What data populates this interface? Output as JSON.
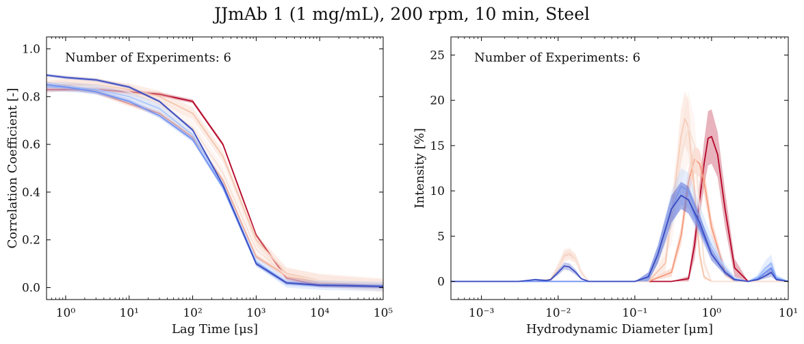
{
  "figure": {
    "suptitle": "JJmAb 1 (1 mg/mL), 200 rpm, 10 min, Steel"
  },
  "chart_data": [
    {
      "type": "line",
      "title": "",
      "xlabel": "Lag Time [μs]",
      "ylabel": "Correlation Coefficient [-]",
      "xscale": "log",
      "xlim": [
        0.5,
        100000
      ],
      "ylim": [
        -0.05,
        1.05
      ],
      "xticks": [
        1,
        10,
        100,
        1000,
        10000,
        100000
      ],
      "xtick_labels": [
        "10⁰",
        "10¹",
        "10²",
        "10³",
        "10⁴",
        "10⁵"
      ],
      "yticks": [
        0.0,
        0.2,
        0.4,
        0.6,
        0.8,
        1.0
      ],
      "ytick_labels": [
        "0.0",
        "0.2",
        "0.4",
        "0.6",
        "0.8",
        "1.0"
      ],
      "grid": false,
      "annotation": "Number of Experiments: 6",
      "series": [
        {
          "color": "#b40426",
          "x": [
            0.5,
            1,
            3,
            10,
            30,
            100,
            300,
            1000,
            3000,
            10000,
            30000,
            100000
          ],
          "y": [
            0.83,
            0.83,
            0.83,
            0.82,
            0.81,
            0.78,
            0.6,
            0.22,
            0.04,
            0.01,
            0.008,
            0.005
          ],
          "band": 0.008
        },
        {
          "color": "#f4987a",
          "x": [
            0.5,
            1,
            3,
            10,
            30,
            100,
            300,
            1000,
            3000,
            10000,
            30000,
            100000
          ],
          "y": [
            0.84,
            0.84,
            0.82,
            0.77,
            0.73,
            0.63,
            0.45,
            0.13,
            0.05,
            0.02,
            0.015,
            0.01
          ],
          "band": 0.01
        },
        {
          "color": "#f5c4ac",
          "x": [
            0.5,
            1,
            3,
            10,
            30,
            100,
            300,
            1000,
            3000,
            10000,
            30000,
            100000
          ],
          "y": [
            0.84,
            0.85,
            0.85,
            0.83,
            0.8,
            0.73,
            0.55,
            0.2,
            0.06,
            0.03,
            0.02,
            0.01
          ],
          "band": 0.025
        },
        {
          "color": "#f7e1d6",
          "x": [
            0.5,
            1,
            3,
            10,
            30,
            100,
            300,
            1000,
            3000,
            10000,
            30000,
            100000
          ],
          "y": [
            0.86,
            0.86,
            0.85,
            0.82,
            0.77,
            0.67,
            0.48,
            0.16,
            0.05,
            0.03,
            0.02,
            0.01
          ],
          "band": 0.03
        },
        {
          "color": "#aac7fd",
          "x": [
            0.5,
            1,
            3,
            10,
            30,
            100,
            300,
            1000,
            3000,
            10000,
            30000,
            100000
          ],
          "y": [
            0.84,
            0.84,
            0.83,
            0.8,
            0.75,
            0.64,
            0.43,
            0.11,
            0.02,
            0.01,
            0.008,
            0.005
          ],
          "band": 0.02
        },
        {
          "color": "#6f92f3",
          "x": [
            0.5,
            1,
            3,
            10,
            30,
            100,
            300,
            1000,
            3000,
            10000,
            30000,
            100000
          ],
          "y": [
            0.85,
            0.84,
            0.82,
            0.78,
            0.72,
            0.62,
            0.42,
            0.1,
            0.02,
            0.01,
            0.008,
            0.005
          ],
          "band": 0.01
        },
        {
          "color": "#3b4cc0",
          "x": [
            0.5,
            1,
            3,
            10,
            30,
            100,
            300,
            1000,
            3000,
            10000,
            30000,
            100000
          ],
          "y": [
            0.89,
            0.88,
            0.87,
            0.84,
            0.78,
            0.66,
            0.43,
            0.1,
            0.02,
            0.01,
            0.008,
            0.005
          ],
          "band": 0.006
        }
      ]
    },
    {
      "type": "line",
      "title": "",
      "xlabel": "Hydrodynamic Diameter [μm]",
      "ylabel": "Intensity [%]",
      "xscale": "log",
      "xlim": [
        0.0004,
        10
      ],
      "ylim": [
        -2,
        27
      ],
      "xticks": [
        0.001,
        0.01,
        0.1,
        1,
        10
      ],
      "xtick_labels": [
        "10⁻³",
        "10⁻²",
        "10⁻¹",
        "10⁰",
        "10¹"
      ],
      "yticks": [
        0,
        5,
        10,
        15,
        20,
        25
      ],
      "ytick_labels": [
        "0",
        "5",
        "10",
        "15",
        "20",
        "25"
      ],
      "grid": false,
      "annotation": "Number of Experiments: 6",
      "series": [
        {
          "color": "#b40426",
          "x": [
            0.0004,
            0.3,
            0.5,
            0.6,
            0.7,
            0.8,
            0.9,
            1.0,
            1.2,
            1.5,
            2.0,
            3.0,
            10
          ],
          "y": [
            0,
            0,
            0.3,
            4,
            9,
            13,
            15.8,
            16,
            14,
            8,
            1.5,
            0,
            0
          ],
          "band": [
            0,
            0,
            0.3,
            1.5,
            2,
            2.5,
            3,
            3,
            2.5,
            2,
            1,
            0,
            0
          ]
        },
        {
          "color": "#f4987a",
          "x": [
            0.0004,
            0.15,
            0.3,
            0.4,
            0.5,
            0.6,
            0.7,
            0.8,
            1.0,
            1.5,
            2.0,
            10
          ],
          "y": [
            0,
            0,
            1,
            5,
            11,
            13.5,
            13,
            11,
            6,
            1,
            0,
            0
          ],
          "band": [
            0,
            0,
            0.5,
            1,
            1.5,
            1.5,
            1.5,
            1.5,
            1,
            0.5,
            0,
            0
          ]
        },
        {
          "color": "#f5c4ac",
          "x": [
            0.0004,
            0.005,
            0.008,
            0.01,
            0.012,
            0.014,
            0.017,
            0.02,
            0.025,
            0.15,
            0.25,
            0.35,
            0.4,
            0.45,
            0.5,
            0.6,
            0.7,
            0.8,
            1.0,
            10
          ],
          "y": [
            0,
            0,
            0.2,
            1.5,
            2.8,
            3.0,
            2.5,
            1.0,
            0,
            0,
            2,
            12,
            16,
            18,
            17,
            10,
            3,
            0.5,
            0,
            0
          ],
          "band": [
            0,
            0,
            0.2,
            0.5,
            0.6,
            0.6,
            0.5,
            0.3,
            0,
            0,
            1,
            2,
            3,
            3,
            3,
            2,
            1,
            0.3,
            0,
            0
          ]
        },
        {
          "color": "#f7e1d6",
          "x": [
            0.0004,
            0.008,
            0.01,
            0.012,
            0.014,
            0.017,
            0.02,
            0.025,
            0.15,
            0.3,
            0.4,
            0.5,
            0.6,
            0.7,
            0.8,
            1.0,
            10
          ],
          "y": [
            0,
            0,
            1.5,
            3.0,
            3.2,
            2.5,
            1.0,
            0,
            0,
            6,
            14,
            17,
            15,
            8,
            2,
            0,
            0
          ],
          "band": [
            0,
            0,
            0.5,
            0.6,
            0.6,
            0.5,
            0.3,
            0,
            0,
            2,
            3,
            4,
            3,
            2,
            1,
            0,
            0
          ]
        },
        {
          "color": "#aac7fd",
          "x": [
            0.0004,
            0.1,
            0.15,
            0.2,
            0.3,
            0.4,
            0.5,
            0.7,
            1.0,
            1.5,
            2.0,
            3.0,
            4.0,
            5.0,
            6.0,
            7.0,
            10
          ],
          "y": [
            0,
            0,
            0.5,
            3,
            8,
            10.5,
            10,
            7,
            4,
            1.5,
            0.3,
            0,
            0.5,
            1.5,
            2,
            0.5,
            0
          ],
          "band": [
            0,
            0,
            0.5,
            1,
            2,
            2,
            2,
            1.5,
            1,
            0.5,
            0.3,
            0,
            0.3,
            0.8,
            1,
            0.3,
            0
          ]
        },
        {
          "color": "#6f92f3",
          "x": [
            0.0004,
            0.1,
            0.15,
            0.2,
            0.3,
            0.4,
            0.5,
            0.7,
            1.0,
            1.5,
            2.0,
            3.0,
            4.0,
            5.0,
            6.0,
            7.0,
            10
          ],
          "y": [
            0,
            0,
            0.5,
            3,
            8,
            9.5,
            9,
            6,
            3,
            1,
            0.2,
            0,
            0.3,
            1,
            1.5,
            0.3,
            0
          ],
          "band": [
            0,
            0,
            0.5,
            1,
            1.5,
            1.5,
            1.5,
            1,
            0.7,
            0.3,
            0.2,
            0,
            0.2,
            0.5,
            0.7,
            0.2,
            0
          ]
        },
        {
          "color": "#3b4cc0",
          "x": [
            0.0004,
            0.003,
            0.005,
            0.007,
            0.008,
            0.01,
            0.012,
            0.014,
            0.017,
            0.02,
            0.025,
            0.1,
            0.15,
            0.2,
            0.3,
            0.4,
            0.5,
            0.7,
            1.0,
            1.5,
            2.0,
            3.0,
            4.0,
            5.0,
            6.0,
            7.0,
            10
          ],
          "y": [
            0,
            0,
            0.2,
            0.1,
            0.2,
            1.0,
            1.7,
            1.6,
            1.0,
            0.3,
            0,
            0,
            0.5,
            3,
            8,
            9.5,
            9,
            6.5,
            3,
            1,
            0.2,
            0,
            0.2,
            0.6,
            1,
            0.2,
            0
          ],
          "band": [
            0,
            0,
            0.1,
            0.1,
            0.1,
            0.3,
            0.4,
            0.4,
            0.3,
            0.1,
            0,
            0,
            0.5,
            1,
            1.5,
            1.5,
            1.5,
            1,
            0.7,
            0.3,
            0.1,
            0,
            0.1,
            0.3,
            0.5,
            0.1,
            0
          ]
        }
      ]
    }
  ]
}
